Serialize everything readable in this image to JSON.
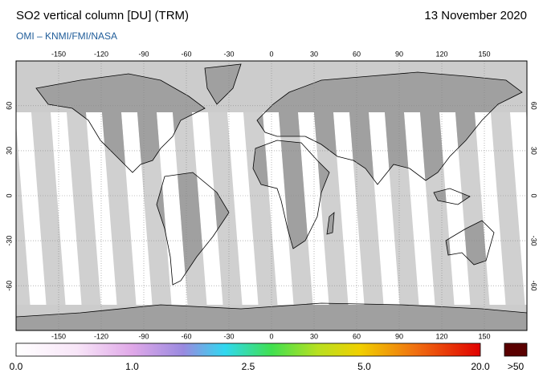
{
  "header": {
    "title": "SO2 vertical column [DU] (TRM)",
    "source": "OMI  –  KNMI/FMI/NASA",
    "date": "13 November 2020"
  },
  "map": {
    "lon_ticks": [
      -150,
      -120,
      -90,
      -60,
      -30,
      0,
      30,
      60,
      90,
      120,
      150
    ],
    "lat_ticks": [
      60,
      30,
      0,
      -30,
      -60
    ]
  },
  "colorbar": {
    "ticks": [
      {
        "value": 0,
        "label": "0.0"
      },
      {
        "value": 1,
        "label": "1.0"
      },
      {
        "value": 2.5,
        "label": "2.5"
      },
      {
        "value": 5,
        "label": "5.0"
      },
      {
        "value": 20,
        "label": "20.0"
      }
    ],
    "overflow_label": ">50"
  }
}
